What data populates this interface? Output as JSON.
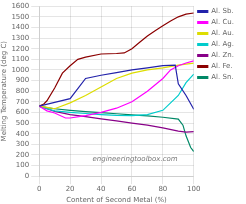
{
  "chart_data": {
    "type": "line",
    "xlabel": "Content of Second Metal (%)",
    "ylabel": "Melting Temperature (deg C)",
    "annotations": [
      "engineeringtoolbox.com"
    ],
    "xlim": [
      0,
      100
    ],
    "ylim": [
      0,
      1600
    ],
    "xticks": [
      0,
      20,
      40,
      60,
      80,
      100
    ],
    "yticks": [
      0,
      100,
      200,
      300,
      400,
      500,
      600,
      700,
      800,
      900,
      1000,
      1100,
      1200,
      1300,
      1400,
      1500,
      1600
    ],
    "grid": true,
    "legend": "upper right",
    "series": [
      {
        "name": "Al. Sb.",
        "color": "#2222aa",
        "x": [
          0,
          10,
          20,
          30,
          40,
          50,
          60,
          70,
          80,
          88,
          90,
          95,
          100
        ],
        "values": [
          660,
          695,
          730,
          920,
          950,
          975,
          1000,
          1020,
          1040,
          1045,
          870,
          760,
          630
        ]
      },
      {
        "name": "Al. Cu.",
        "color": "#ff00ff",
        "x": [
          0,
          5,
          10,
          17,
          20,
          30,
          40,
          50,
          60,
          70,
          80,
          85,
          90,
          95,
          100
        ],
        "values": [
          660,
          615,
          595,
          548,
          548,
          570,
          600,
          640,
          700,
          800,
          920,
          1000,
          1040,
          1065,
          1085
        ]
      },
      {
        "name": "Al. Au.",
        "color": "#dddd00",
        "x": [
          0,
          5,
          10,
          20,
          30,
          40,
          50,
          60,
          70,
          80,
          90,
          100
        ],
        "values": [
          660,
          648,
          635,
          690,
          760,
          840,
          920,
          970,
          1000,
          1020,
          1045,
          1065
        ]
      },
      {
        "name": "Al. Ag.",
        "color": "#00cccc",
        "x": [
          0,
          5,
          10,
          20,
          30,
          40,
          50,
          60,
          70,
          80,
          90,
          95,
          100
        ],
        "values": [
          660,
          635,
          615,
          600,
          590,
          580,
          572,
          570,
          580,
          620,
          760,
          880,
          960
        ]
      },
      {
        "name": "Al. Zn.",
        "color": "#880088",
        "x": [
          0,
          5,
          10,
          20,
          30,
          40,
          50,
          60,
          70,
          80,
          90,
          95,
          100
        ],
        "values": [
          660,
          635,
          610,
          580,
          560,
          540,
          520,
          500,
          480,
          455,
          425,
          415,
          419
        ]
      },
      {
        "name": "Al. Fe.",
        "color": "#8b0000",
        "x": [
          0,
          3,
          5,
          10,
          15,
          20,
          25,
          30,
          40,
          50,
          55,
          60,
          65,
          70,
          75,
          80,
          85,
          90,
          95,
          100
        ],
        "values": [
          660,
          680,
          710,
          830,
          970,
          1040,
          1100,
          1120,
          1150,
          1155,
          1160,
          1200,
          1260,
          1320,
          1370,
          1415,
          1460,
          1500,
          1525,
          1536
        ]
      },
      {
        "name": "Al. Sn.",
        "color": "#008866",
        "x": [
          0,
          5,
          10,
          20,
          30,
          40,
          50,
          60,
          70,
          80,
          90,
          93,
          95,
          98,
          100
        ],
        "values": [
          660,
          645,
          635,
          620,
          608,
          598,
          588,
          578,
          568,
          555,
          538,
          480,
          380,
          270,
          232
        ]
      }
    ]
  }
}
